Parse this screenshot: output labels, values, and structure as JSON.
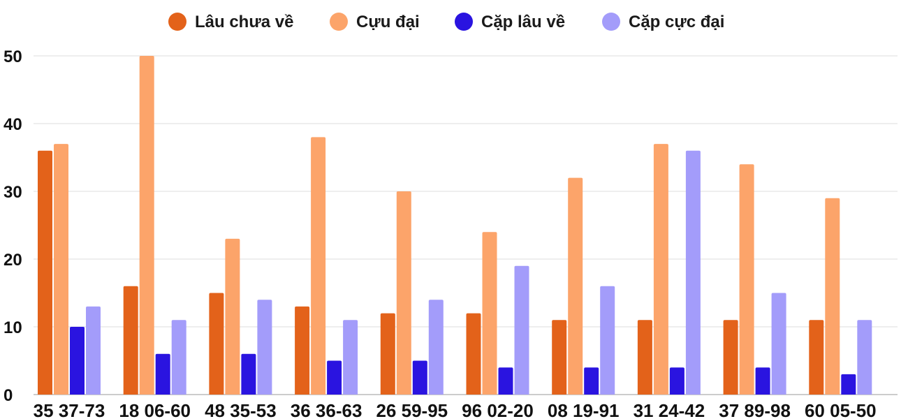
{
  "chart_data": {
    "type": "bar",
    "categories": [
      "35 37-73",
      "18 06-60",
      "48 35-53",
      "36 36-63",
      "26 59-95",
      "96 02-20",
      "08 19-91",
      "31 24-42",
      "37 89-98",
      "60 05-50"
    ],
    "series": [
      {
        "name": "Lâu chưa về",
        "color": "#e3621a",
        "values": [
          36,
          16,
          15,
          13,
          12,
          12,
          11,
          11,
          11,
          11
        ]
      },
      {
        "name": "Cựu đại",
        "color": "#fca46a",
        "values": [
          37,
          50,
          23,
          38,
          30,
          24,
          32,
          37,
          34,
          29
        ]
      },
      {
        "name": "Cặp lâu về",
        "color": "#2a14e0",
        "values": [
          10,
          6,
          6,
          5,
          5,
          4,
          4,
          4,
          4,
          3
        ]
      },
      {
        "name": "Cặp cực đại",
        "color": "#a39cfa",
        "values": [
          13,
          11,
          14,
          11,
          14,
          19,
          16,
          36,
          15,
          11
        ]
      }
    ],
    "ylim": [
      0,
      50
    ],
    "yticks": [
      0,
      10,
      20,
      30,
      40,
      50
    ],
    "grid": true,
    "legend_position": "top-center"
  }
}
